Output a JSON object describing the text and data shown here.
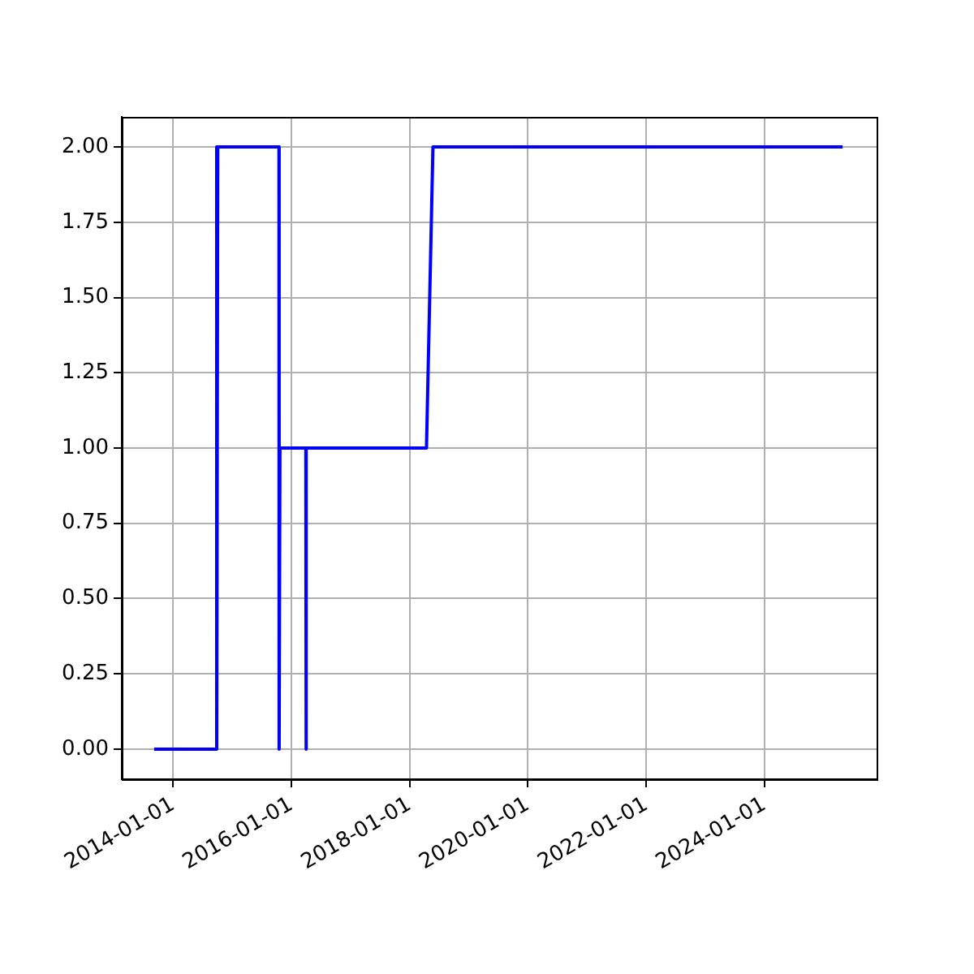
{
  "chart_data": {
    "type": "line",
    "x": [
      "2013-09-06",
      "2014-09-24",
      "2014-09-25",
      "2014-09-30",
      "2014-10-04",
      "2015-10-17",
      "2015-10-18",
      "2015-10-23",
      "2016-03-31",
      "2016-04-01",
      "2016-04-03",
      "2018-04-15",
      "2018-05-25",
      "2025-04-28"
    ],
    "series": [
      {
        "color": "#0000ff",
        "values": [
          0,
          0,
          2,
          0,
          2,
          2,
          0,
          1,
          1,
          0,
          1,
          1,
          2,
          2
        ]
      }
    ],
    "xlim": [
      "2013-02-18",
      "2025-11-24"
    ],
    "xticks": [
      "2014-01-01",
      "2016-01-01",
      "2018-01-01",
      "2020-01-01",
      "2022-01-01",
      "2024-01-01"
    ],
    "ylim": [
      -0.1,
      2.1
    ],
    "yticks": [
      {
        "value": 0,
        "label": "0.00"
      },
      {
        "value": 0.25,
        "label": "0.25"
      },
      {
        "value": 0.5,
        "label": "0.50"
      },
      {
        "value": 0.75,
        "label": "0.75"
      },
      {
        "value": 1,
        "label": "1.00"
      },
      {
        "value": 1.25,
        "label": "1.25"
      },
      {
        "value": 1.5,
        "label": "1.50"
      },
      {
        "value": 1.75,
        "label": "1.75"
      },
      {
        "value": 2,
        "label": "2.00"
      }
    ],
    "grid": true,
    "legend": false,
    "marker": "none",
    "line_style": "solid"
  }
}
